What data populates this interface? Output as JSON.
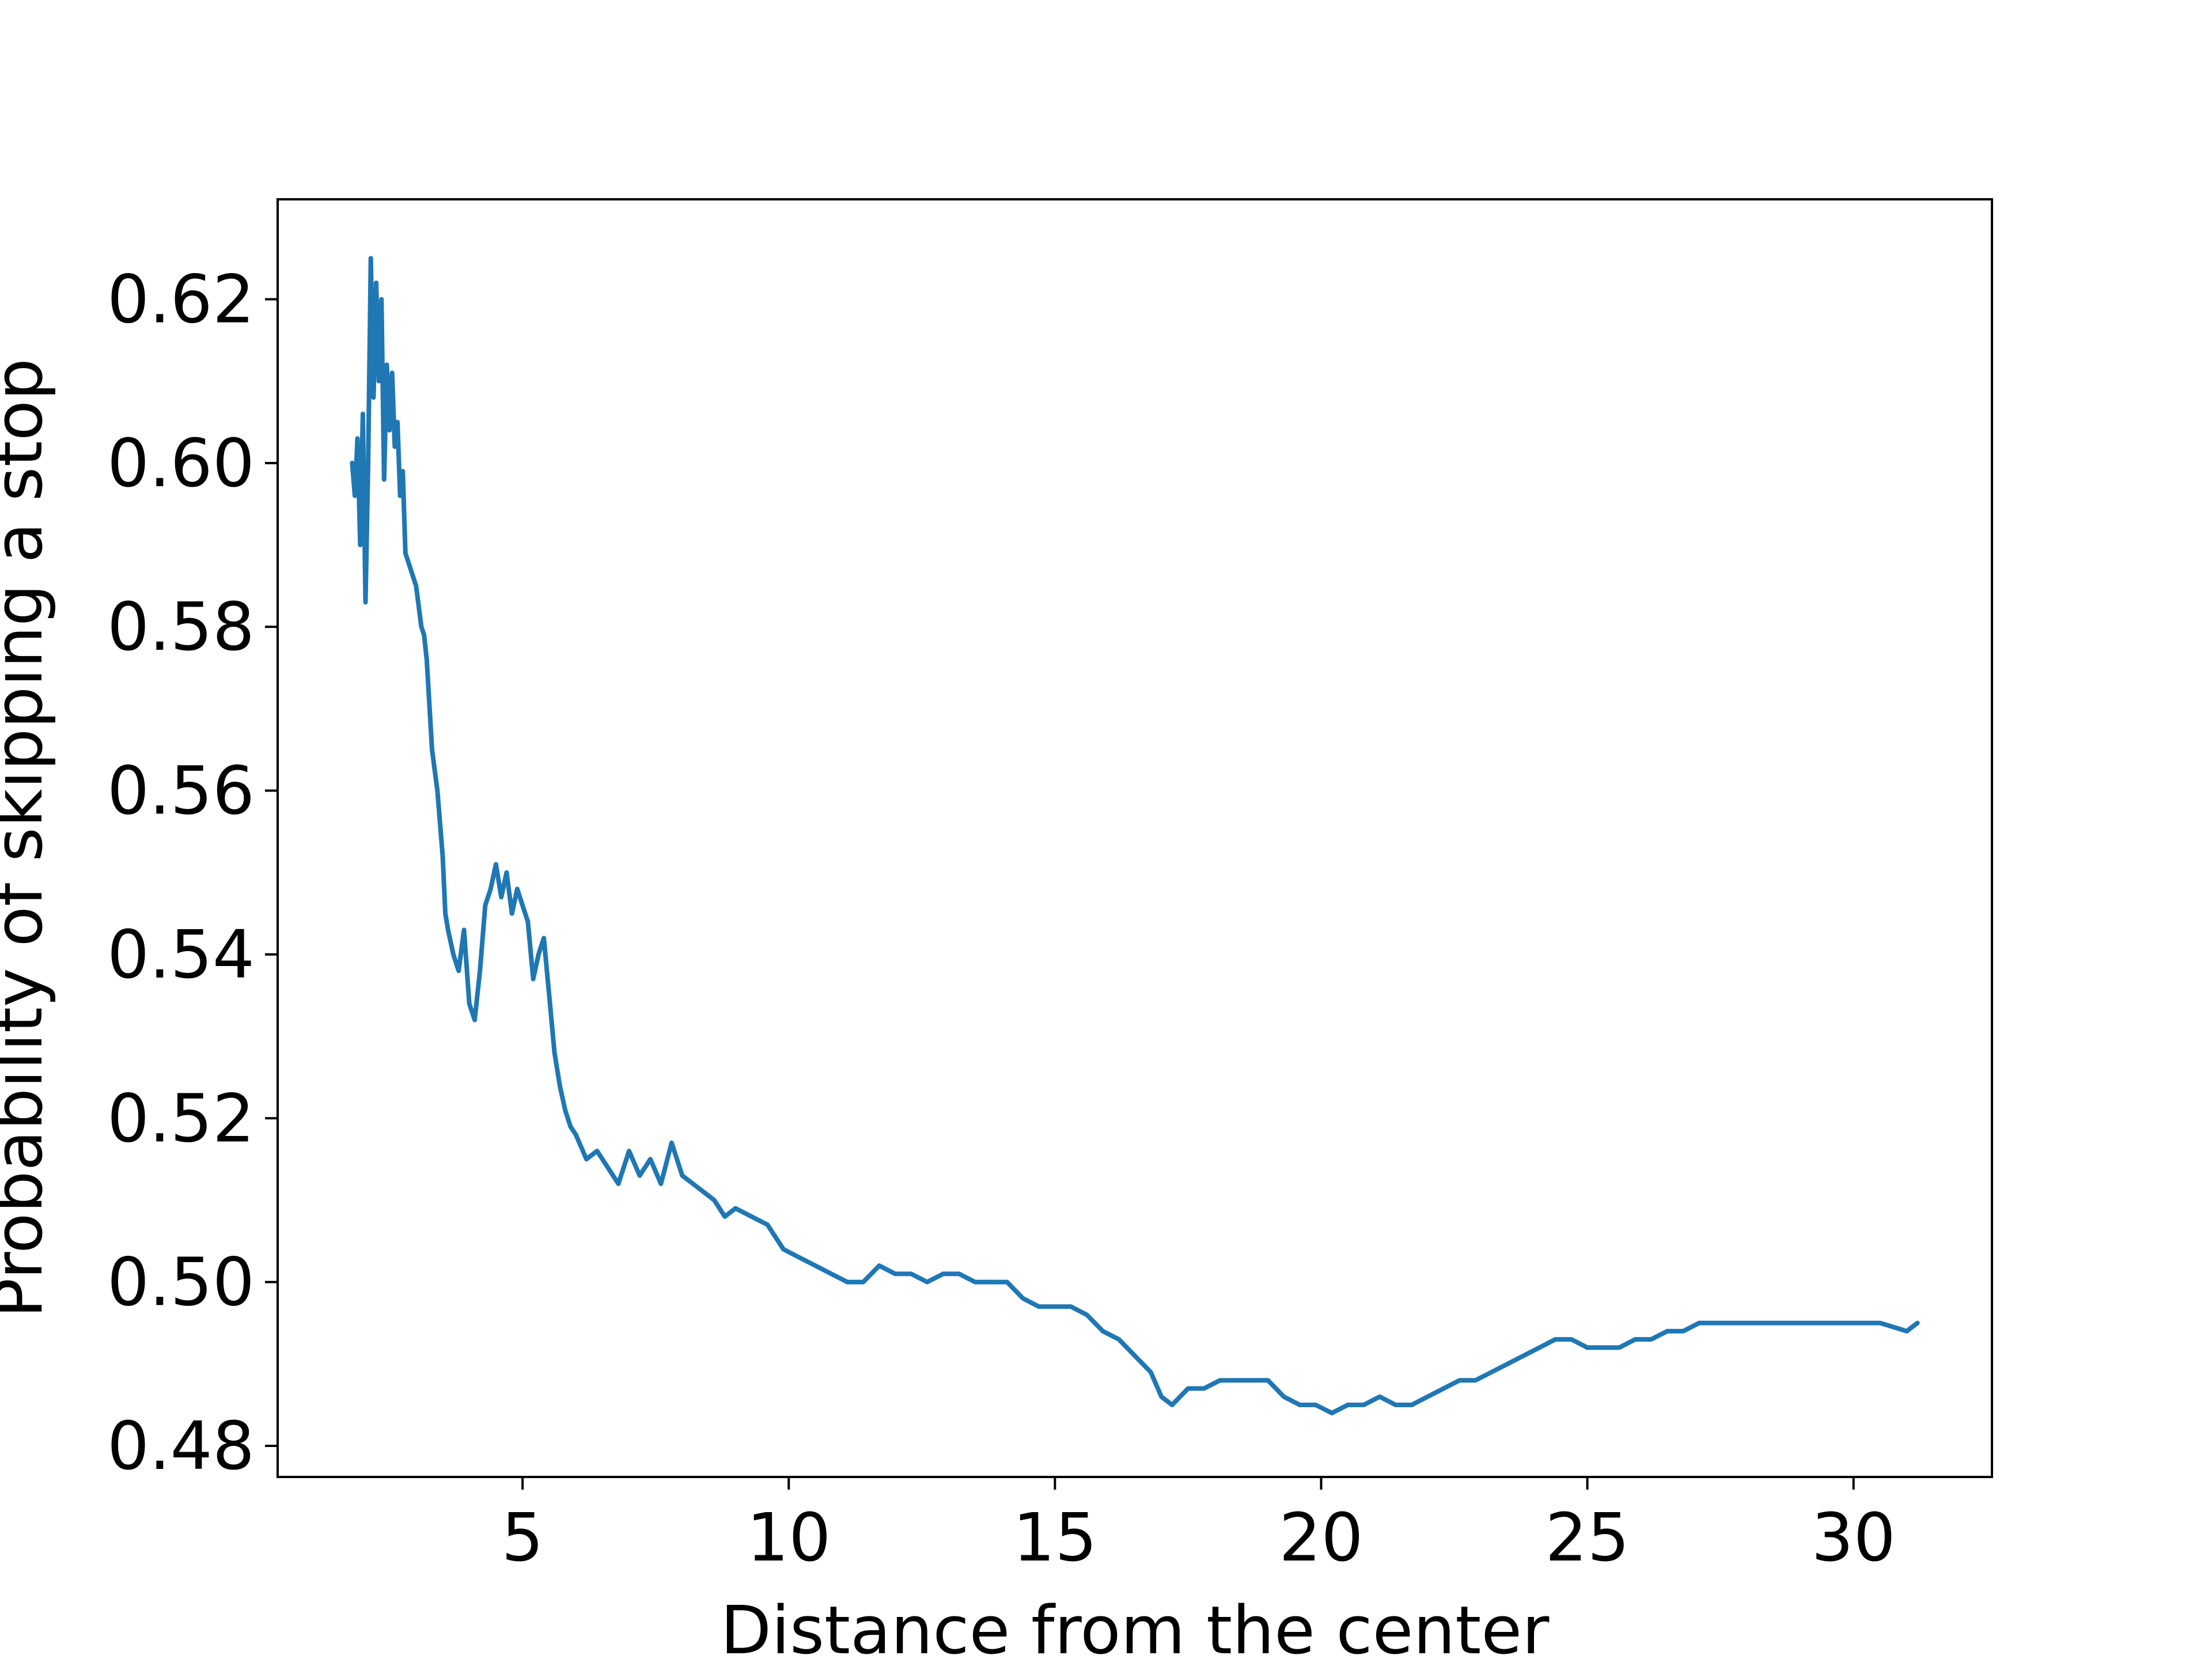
{
  "chart_data": {
    "type": "line",
    "title": "",
    "xlabel": "Distance from the center",
    "ylabel": "Probability of skipping a stop",
    "xlim": [
      0.4,
      32.6
    ],
    "ylim": [
      0.4762,
      0.6322
    ],
    "xticks": [
      5,
      10,
      15,
      20,
      25,
      30
    ],
    "xtick_labels": [
      "5",
      "10",
      "15",
      "20",
      "25",
      "30"
    ],
    "yticks": [
      0.48,
      0.5,
      0.52,
      0.54,
      0.56,
      0.58,
      0.6,
      0.62
    ],
    "ytick_labels": [
      "0.48",
      "0.50",
      "0.52",
      "0.54",
      "0.56",
      "0.58",
      "0.60",
      "0.62"
    ],
    "grid": false,
    "legend": "none",
    "line_color": "#1f77b4",
    "series": [
      {
        "x": [
          1.8,
          1.85,
          1.9,
          1.95,
          2.0,
          2.05,
          2.1,
          2.15,
          2.2,
          2.25,
          2.3,
          2.35,
          2.4,
          2.45,
          2.5,
          2.55,
          2.6,
          2.65,
          2.7,
          2.75,
          2.8,
          2.9,
          3.0,
          3.1,
          3.15,
          3.2,
          3.3,
          3.4,
          3.5,
          3.55,
          3.6,
          3.7,
          3.8,
          3.9,
          4.0,
          4.1,
          4.2,
          4.3,
          4.4,
          4.5,
          4.6,
          4.7,
          4.8,
          4.9,
          5.0,
          5.1,
          5.2,
          5.3,
          5.4,
          5.5,
          5.6,
          5.7,
          5.8,
          5.9,
          6.0,
          6.2,
          6.4,
          6.6,
          6.8,
          7.0,
          7.2,
          7.4,
          7.6,
          7.8,
          8.0,
          8.2,
          8.4,
          8.6,
          8.8,
          9.0,
          9.3,
          9.6,
          9.9,
          10.2,
          10.5,
          10.8,
          11.1,
          11.4,
          11.7,
          12.0,
          12.3,
          12.6,
          12.9,
          13.2,
          13.5,
          13.8,
          14.1,
          14.4,
          14.7,
          15.0,
          15.3,
          15.6,
          15.9,
          16.2,
          16.5,
          16.8,
          17.0,
          17.2,
          17.5,
          17.8,
          18.1,
          18.4,
          18.7,
          19.0,
          19.3,
          19.6,
          19.9,
          20.2,
          20.5,
          20.8,
          21.1,
          21.4,
          21.7,
          22.0,
          22.3,
          22.6,
          22.9,
          23.2,
          23.5,
          23.8,
          24.1,
          24.4,
          24.7,
          25.0,
          25.3,
          25.6,
          25.9,
          26.2,
          26.5,
          26.8,
          27.1,
          27.4,
          27.7,
          28.0,
          28.5,
          29.0,
          29.5,
          30.0,
          30.5,
          31.0,
          31.2
        ],
        "y": [
          0.6,
          0.596,
          0.603,
          0.59,
          0.606,
          0.583,
          0.6,
          0.625,
          0.608,
          0.622,
          0.61,
          0.62,
          0.598,
          0.612,
          0.604,
          0.611,
          0.602,
          0.605,
          0.596,
          0.599,
          0.589,
          0.587,
          0.585,
          0.58,
          0.579,
          0.576,
          0.565,
          0.56,
          0.552,
          0.545,
          0.543,
          0.54,
          0.538,
          0.543,
          0.534,
          0.532,
          0.538,
          0.546,
          0.548,
          0.551,
          0.547,
          0.55,
          0.545,
          0.548,
          0.546,
          0.544,
          0.537,
          0.54,
          0.542,
          0.535,
          0.528,
          0.524,
          0.521,
          0.519,
          0.518,
          0.515,
          0.516,
          0.514,
          0.512,
          0.516,
          0.513,
          0.515,
          0.512,
          0.517,
          0.513,
          0.512,
          0.511,
          0.51,
          0.508,
          0.509,
          0.508,
          0.507,
          0.504,
          0.503,
          0.502,
          0.501,
          0.5,
          0.5,
          0.502,
          0.501,
          0.501,
          0.5,
          0.501,
          0.501,
          0.5,
          0.5,
          0.5,
          0.498,
          0.497,
          0.497,
          0.497,
          0.496,
          0.494,
          0.493,
          0.491,
          0.489,
          0.486,
          0.485,
          0.487,
          0.487,
          0.488,
          0.488,
          0.488,
          0.488,
          0.486,
          0.485,
          0.485,
          0.484,
          0.485,
          0.485,
          0.486,
          0.485,
          0.485,
          0.486,
          0.487,
          0.488,
          0.488,
          0.489,
          0.49,
          0.491,
          0.492,
          0.493,
          0.493,
          0.492,
          0.492,
          0.492,
          0.493,
          0.493,
          0.494,
          0.494,
          0.495,
          0.495,
          0.495,
          0.495,
          0.495,
          0.495,
          0.495,
          0.495,
          0.495,
          0.494,
          0.495
        ]
      }
    ]
  }
}
